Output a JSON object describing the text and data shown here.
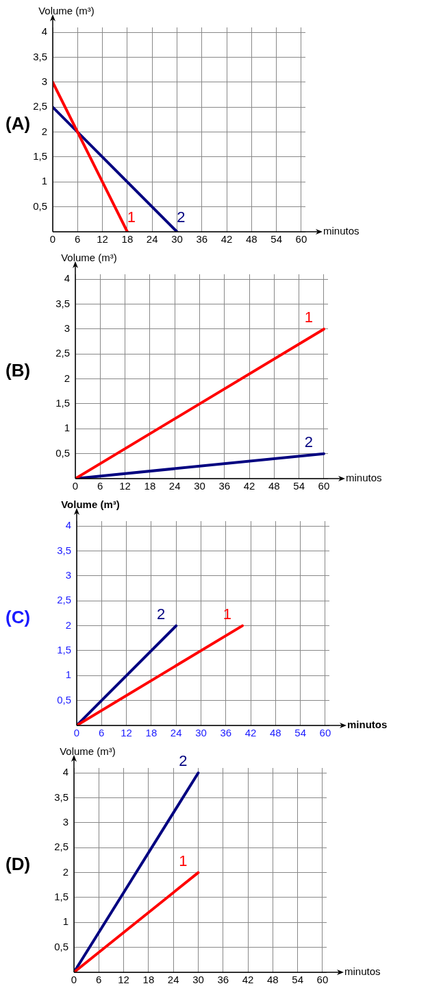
{
  "chart_data": [
    {
      "type": "line",
      "title": "(A)",
      "xlabel": "minutos",
      "ylabel": "Volume (m³)",
      "xlim": [
        0,
        61
      ],
      "ylim": [
        0,
        4.1
      ],
      "xticks": [
        0,
        6,
        12,
        18,
        24,
        30,
        36,
        42,
        48,
        54,
        60
      ],
      "yticks": [
        {
          "value": 0,
          "label": null
        },
        {
          "value": 0.5,
          "label": "0,5"
        },
        1,
        {
          "value": 1.5,
          "label": "1,5"
        },
        2,
        {
          "value": 2.5,
          "label": "2,5"
        },
        3,
        {
          "value": 3.5,
          "label": "3,5"
        },
        4
      ],
      "grid": true,
      "marker": "none",
      "series": [
        {
          "name": "1",
          "color": "#ff0000",
          "x": [
            0,
            18
          ],
          "values": [
            3,
            0
          ]
        },
        {
          "name": "2",
          "color": "#000080",
          "x": [
            0,
            30
          ],
          "values": [
            2.5,
            0
          ]
        }
      ]
    },
    {
      "type": "line",
      "title": "(B)",
      "xlabel": "minutos",
      "ylabel": "Volume (m³)",
      "xlim": [
        0,
        61
      ],
      "ylim": [
        0,
        4.1
      ],
      "xticks": [
        0,
        6,
        12,
        18,
        24,
        30,
        36,
        42,
        48,
        54,
        60
      ],
      "yticks": [
        {
          "value": 0,
          "label": null
        },
        {
          "value": 0.5,
          "label": "0,5"
        },
        1,
        {
          "value": 1.5,
          "label": "1,5"
        },
        2,
        {
          "value": 2.5,
          "label": "2,5"
        },
        3,
        {
          "value": 3.5,
          "label": "3,5"
        },
        4
      ],
      "grid": true,
      "marker": "none",
      "series": [
        {
          "name": "1",
          "color": "#ff0000",
          "x": [
            0,
            60
          ],
          "values": [
            0,
            3
          ]
        },
        {
          "name": "2",
          "color": "#000080",
          "x": [
            0,
            60
          ],
          "values": [
            0,
            0.5
          ]
        }
      ]
    },
    {
      "type": "line",
      "title": "(C)",
      "xlabel": "minutos",
      "ylabel": "Volume (m³)",
      "xlim": [
        0,
        61
      ],
      "ylim": [
        0,
        4.1
      ],
      "xticks": [
        0,
        6,
        12,
        18,
        24,
        30,
        36,
        42,
        48,
        54,
        60
      ],
      "yticks": [
        {
          "value": 0,
          "label": null
        },
        {
          "value": 0.5,
          "label": "0,5"
        },
        1,
        {
          "value": 1.5,
          "label": "1,5"
        },
        2,
        {
          "value": 2.5,
          "label": "2,5"
        },
        3,
        {
          "value": 3.5,
          "label": "3,5"
        },
        4
      ],
      "grid": true,
      "marker": "none",
      "series": [
        {
          "name": "1",
          "color": "#ff0000",
          "x": [
            0,
            40
          ],
          "values": [
            0,
            2
          ]
        },
        {
          "name": "2",
          "color": "#000080",
          "x": [
            0,
            24
          ],
          "values": [
            0,
            2
          ]
        }
      ]
    },
    {
      "type": "line",
      "title": "(D)",
      "xlabel": "minutos",
      "ylabel": "Volume (m³)",
      "xlim": [
        0,
        61
      ],
      "ylim": [
        0,
        4.1
      ],
      "xticks": [
        0,
        6,
        12,
        18,
        24,
        30,
        36,
        42,
        48,
        54,
        60
      ],
      "yticks": [
        {
          "value": 0,
          "label": null
        },
        {
          "value": 0.5,
          "label": "0,5"
        },
        1,
        {
          "value": 1.5,
          "label": "1,5"
        },
        2,
        {
          "value": 2.5,
          "label": "2,5"
        },
        3,
        {
          "value": 3.5,
          "label": "3,5"
        },
        4
      ],
      "grid": true,
      "marker": "none",
      "series": [
        {
          "name": "1",
          "color": "#ff0000",
          "x": [
            0,
            30
          ],
          "values": [
            0,
            2
          ]
        },
        {
          "name": "2",
          "color": "#000080",
          "x": [
            0,
            30
          ],
          "values": [
            0,
            4
          ]
        }
      ]
    }
  ]
}
